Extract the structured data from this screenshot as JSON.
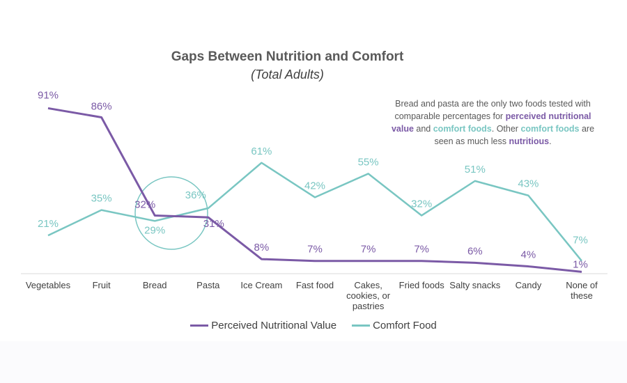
{
  "chart_data": {
    "type": "line",
    "title": "Gaps Between Nutrition and Comfort",
    "subtitle": "(Total Adults)",
    "categories": [
      "Vegetables",
      "Fruit",
      "Bread",
      "Pasta",
      "Ice Cream",
      "Fast food",
      "Cakes, cookies, or pastries",
      "Fried foods",
      "Salty snacks",
      "Candy",
      "None of these"
    ],
    "series": [
      {
        "name": "Perceived Nutritional Value",
        "color": "#7B5AA6",
        "values": [
          91,
          86,
          32,
          31,
          8,
          7,
          7,
          7,
          6,
          4,
          1
        ],
        "labels": [
          "91%",
          "86%",
          "32%",
          "31%",
          "8%",
          "7%",
          "7%",
          "7%",
          "6%",
          "4%",
          "1%"
        ]
      },
      {
        "name": "Comfort Food",
        "color": "#79C6C2",
        "values": [
          21,
          35,
          29,
          36,
          61,
          42,
          55,
          32,
          51,
          43,
          7
        ],
        "labels": [
          "21%",
          "35%",
          "29%",
          "36%",
          "61%",
          "42%",
          "55%",
          "32%",
          "51%",
          "43%",
          "7%"
        ]
      }
    ],
    "ylim": [
      0,
      95
    ],
    "grid": false,
    "legend": "bottom",
    "annotation": {
      "highlight": "Bread and Pasta circled",
      "segments": [
        {
          "text": "Bread and pasta are the only two foods tested with comparable percentages for ",
          "style": "plain"
        },
        {
          "text": "perceived nutritional value",
          "style": "purple"
        },
        {
          "text": " and ",
          "style": "plain"
        },
        {
          "text": "comfort foods",
          "style": "teal"
        },
        {
          "text": ". Other ",
          "style": "plain"
        },
        {
          "text": "comfort foods",
          "style": "teal"
        },
        {
          "text": " are seen as much less ",
          "style": "plain"
        },
        {
          "text": "nutritious",
          "style": "purple"
        },
        {
          "text": ".",
          "style": "plain"
        }
      ]
    }
  }
}
